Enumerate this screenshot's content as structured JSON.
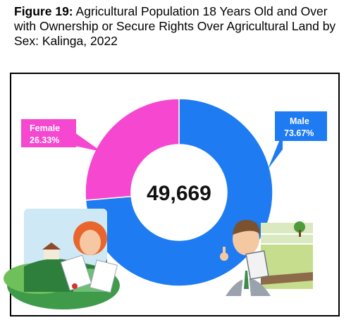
{
  "figure": {
    "label": "Figure 19:",
    "title": "Agricultural Population 18 Years Old and Over with Ownership or Secure Rights Over Agricultural Land by Sex: Kalinga, 2022"
  },
  "chart_data": {
    "type": "pie",
    "style": "donut",
    "center_label": "49,669",
    "categories": [
      "Male",
      "Female"
    ],
    "values": [
      73.67,
      26.33
    ],
    "value_labels": [
      "73.67%",
      "26.33%"
    ],
    "colors": [
      "#1e7bf2",
      "#f547cf"
    ]
  },
  "illustrations": {
    "left": "woman-farmer-with-document-illustration",
    "right": "man-holding-clipboard-illustration"
  }
}
